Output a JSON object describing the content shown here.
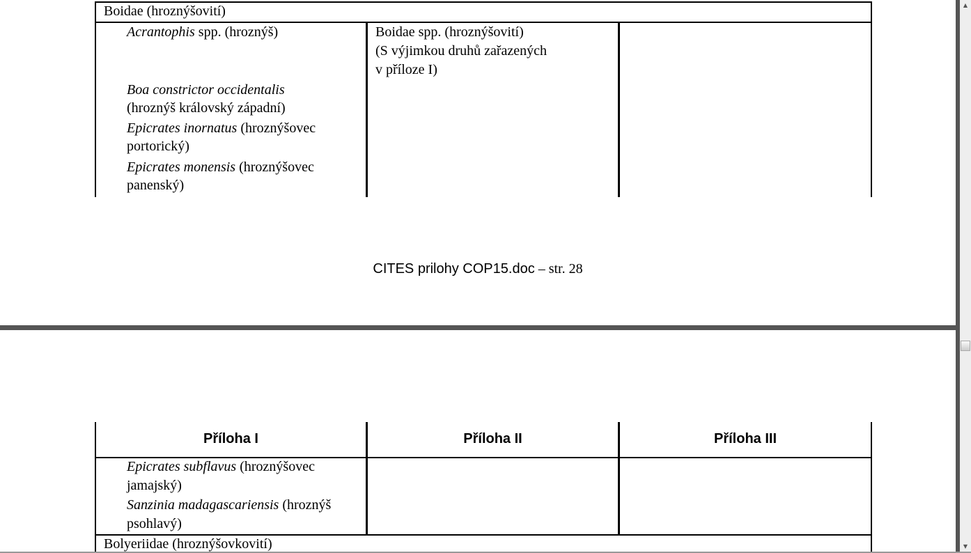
{
  "page1": {
    "family_row": "Boidae (hroznýšovití)",
    "col1": [
      {
        "latin": "Acrantophis",
        "rest": " spp. (hroznýš)"
      },
      {
        "latin": "Boa constrictor occidentalis",
        "rest": ""
      },
      {
        "latin": "",
        "rest": "(hroznýš královský západní)"
      },
      {
        "latin": "Epicrates inornatus",
        "rest": " (hroznýšovec"
      },
      {
        "latin": "",
        "rest": "portorický)"
      },
      {
        "latin": "Epicrates monensis",
        "rest": " (hroznýšovec"
      },
      {
        "latin": "",
        "rest": "panenský)"
      }
    ],
    "col2": [
      "Boidae spp. (hroznýšovití)",
      "(S výjimkou druhů zařazených",
      "v příloze I)"
    ]
  },
  "footer": {
    "filename": "CITES prilohy COP15.doc",
    "page_label": " – str. 28"
  },
  "page2": {
    "headers": [
      "Příloha I",
      "Příloha II",
      "Příloha III"
    ],
    "col1": [
      {
        "latin": "Epicrates subflavus",
        "rest": " (hroznýšovec"
      },
      {
        "latin": "",
        "rest": "jamajský)"
      },
      {
        "latin": "Sanzinia madagascariensis",
        "rest": " (hroznýš"
      },
      {
        "latin": "",
        "rest": "psohlavý)"
      }
    ],
    "family_row": "Bolyeriidae (hroznýšovkovití)"
  },
  "scrollbar": {
    "position_fraction": 0.62
  }
}
